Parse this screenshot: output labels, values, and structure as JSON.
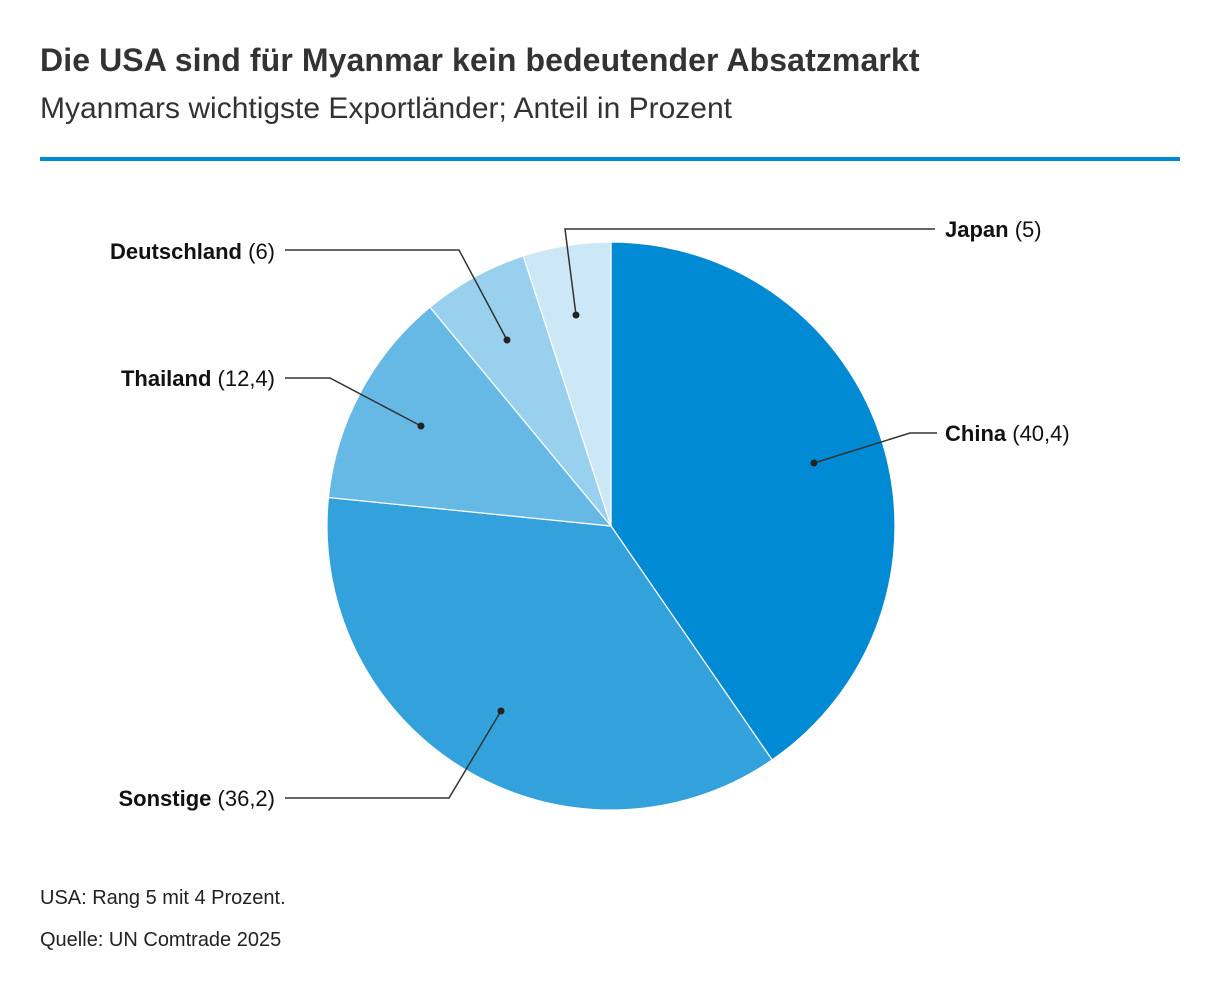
{
  "title": "Die USA sind für Myanmar kein bedeutender Absatzmarkt",
  "subtitle": "Myanmars wichtigste Exportländer; Anteil in Prozent",
  "chart_data": {
    "type": "pie",
    "unit": "Prozent",
    "slices": [
      {
        "name": "China",
        "value": 40.4,
        "value_label": "(40,4)",
        "color": "#008ad4"
      },
      {
        "name": "Sonstige",
        "value": 36.2,
        "value_label": "(36,2)",
        "color": "#33a1db"
      },
      {
        "name": "Thailand",
        "value": 12.4,
        "value_label": "(12,4)",
        "color": "#66b9e5"
      },
      {
        "name": "Deutschland",
        "value": 6,
        "value_label": "(6)",
        "color": "#99d0ee"
      },
      {
        "name": "Japan",
        "value": 5,
        "value_label": "(5)",
        "color": "#cce7f6"
      }
    ]
  },
  "notes": {
    "usa": "USA: Rang 5 mit 4 Prozent.",
    "source": "Quelle: UN Comtrade 2025"
  }
}
